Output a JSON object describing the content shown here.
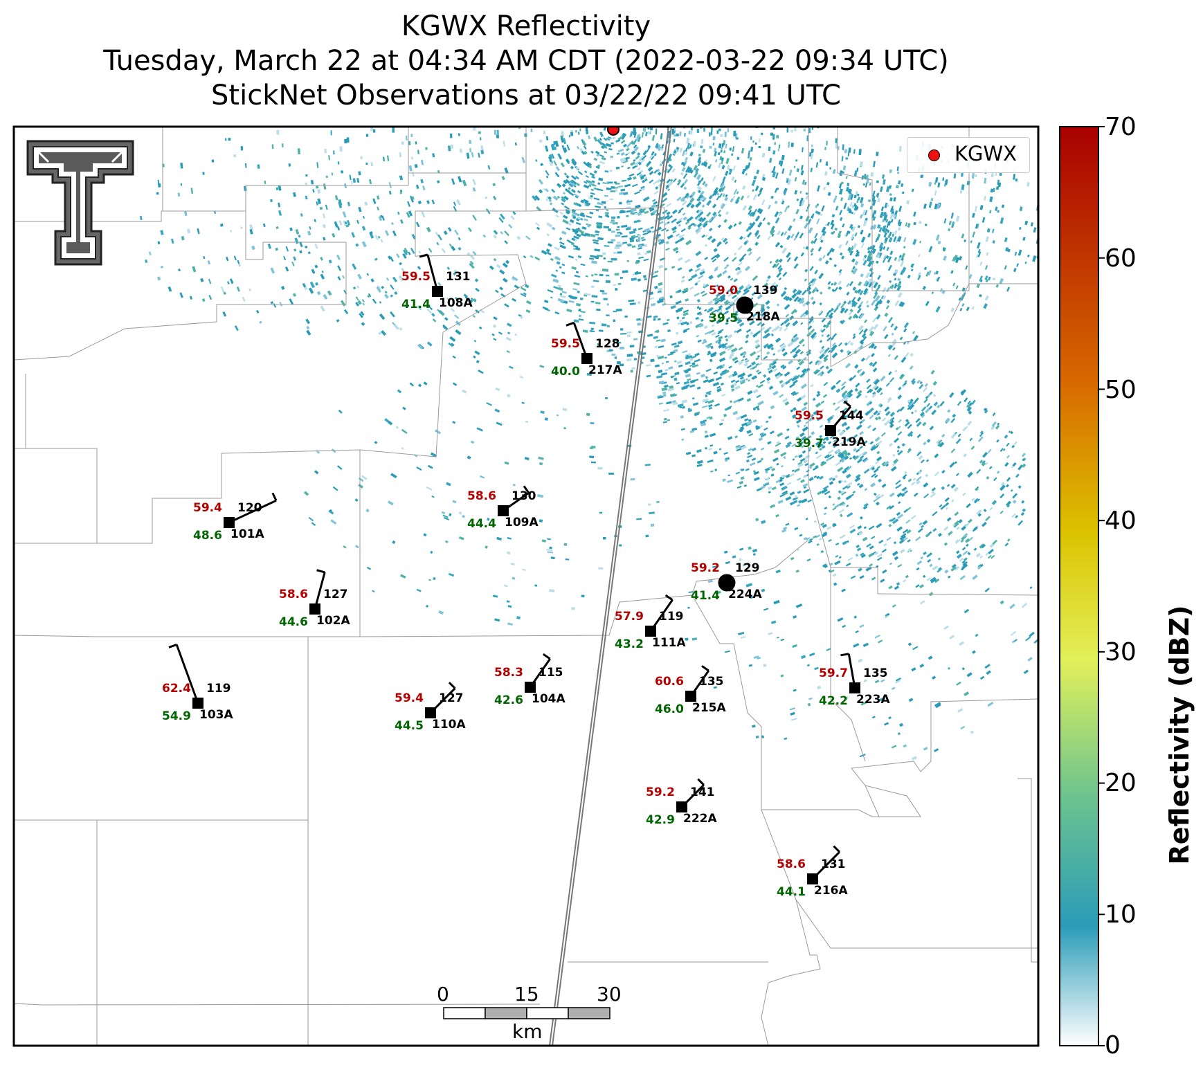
{
  "title": {
    "line1": "KGWX Reflectivity",
    "line2": "Tuesday, March 22 at 04:34 AM CDT (2022-03-22 09:34 UTC)",
    "line3": "StickNet Observations at 03/22/22 09:41 UTC"
  },
  "legend": {
    "label": "KGWX",
    "marker_color": "#ee1111"
  },
  "colorbar": {
    "title": "Reflectivity (dBZ)",
    "ticks": [
      "0",
      "10",
      "20",
      "30",
      "40",
      "50",
      "60",
      "70"
    ],
    "min": 0,
    "max": 70,
    "colors": [
      "#ffffff",
      "#2b9cb8",
      "#6cc38f",
      "#e2f05a",
      "#dcc200",
      "#d86a00",
      "#a80000"
    ]
  },
  "scalebar": {
    "labels": [
      "0",
      "15",
      "30"
    ],
    "unit": "km"
  },
  "logo": {
    "name": "texas-tech-double-t-logo"
  },
  "colors": {
    "temperature": "#b30000",
    "dewpoint": "#006400",
    "station": "#000000"
  },
  "stations": [
    {
      "id": "108A",
      "temp": "59.5",
      "dew": "41.4",
      "extra": "131",
      "marker": "square"
    },
    {
      "id": "218A",
      "temp": "59.0",
      "dew": "39.5",
      "extra": "139",
      "marker": "circle"
    },
    {
      "id": "217A",
      "temp": "59.5",
      "dew": "40.0",
      "extra": "128",
      "marker": "square"
    },
    {
      "id": "219A",
      "temp": "59.5",
      "dew": "39.7",
      "extra": "144",
      "marker": "square"
    },
    {
      "id": "109A",
      "temp": "58.6",
      "dew": "44.4",
      "extra": "130",
      "marker": "square"
    },
    {
      "id": "101A",
      "temp": "59.4",
      "dew": "48.6",
      "extra": "120",
      "marker": "square"
    },
    {
      "id": "224A",
      "temp": "59.2",
      "dew": "41.4",
      "extra": "129",
      "marker": "circle"
    },
    {
      "id": "102A",
      "temp": "58.6",
      "dew": "44.6",
      "extra": "127",
      "marker": "square"
    },
    {
      "id": "111A",
      "temp": "57.9",
      "dew": "43.2",
      "extra": "119",
      "marker": "square"
    },
    {
      "id": "103A",
      "temp": "62.4",
      "dew": "54.9",
      "extra": "119",
      "marker": "square"
    },
    {
      "id": "104A",
      "temp": "58.3",
      "dew": "42.6",
      "extra": "115",
      "marker": "square"
    },
    {
      "id": "110A",
      "temp": "59.4",
      "dew": "44.5",
      "extra": "127",
      "marker": "square"
    },
    {
      "id": "215A",
      "temp": "60.6",
      "dew": "46.0",
      "extra": "135",
      "marker": "square"
    },
    {
      "id": "223A",
      "temp": "59.7",
      "dew": "42.2",
      "extra": "135",
      "marker": "square"
    },
    {
      "id": "222A",
      "temp": "59.2",
      "dew": "42.9",
      "extra": "141",
      "marker": "square"
    },
    {
      "id": "216A",
      "temp": "58.6",
      "dew": "44.1",
      "extra": "131",
      "marker": "square"
    }
  ]
}
